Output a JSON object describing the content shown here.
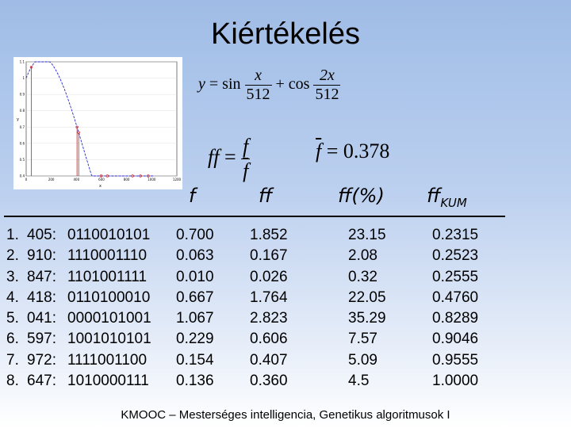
{
  "title": "Kiértékelés",
  "formula_y": {
    "lhs": "y",
    "eq": "=",
    "sin": "sin",
    "n1": "x",
    "d1": "512",
    "plus": "+",
    "cos": "cos",
    "n2": "2x",
    "d2": "512"
  },
  "formula_ff": {
    "lhs": "ff",
    "eq": "=",
    "num": "f",
    "den": "f"
  },
  "formula_mean": {
    "lhs": "f",
    "rhs": "= 0.378"
  },
  "plot": {
    "x_ticks": [
      "0",
      "200",
      "400",
      "600",
      "800",
      "1000",
      "1200"
    ],
    "y_ticks": [
      "1.1",
      "1",
      "0.9",
      "0.8",
      "0.7",
      "0.6",
      "0.5",
      "0.4"
    ],
    "ylabel": "y",
    "xlabel": "x",
    "curve_color": "#2a2ad0",
    "marker_color": "#cc2222"
  },
  "headers": {
    "f": "f",
    "ff": "ff",
    "ffpct": "ff(%)",
    "ffkum_base": "ff",
    "ffkum_sub": "KUM"
  },
  "rows": [
    {
      "idx": "1.",
      "val": "405:",
      "bits": "0110010101",
      "f": "0.700",
      "ff": "1.852",
      "ffpct": "23.15",
      "ffkum": "0.2315"
    },
    {
      "idx": "2.",
      "val": "910:",
      "bits": "1110001110",
      "f": "0.063",
      "ff": "0.167",
      "ffpct": "2.08",
      "ffkum": "0.2523"
    },
    {
      "idx": "3.",
      "val": "847:",
      "bits": "1101001111",
      "f": "0.010",
      "ff": "0.026",
      "ffpct": "0.32",
      "ffkum": "0.2555"
    },
    {
      "idx": "4.",
      "val": "418:",
      "bits": "0110100010",
      "f": "0.667",
      "ff": "1.764",
      "ffpct": "22.05",
      "ffkum": "0.4760"
    },
    {
      "idx": "5.",
      "val": "041:",
      "bits": "0000101001",
      "f": "1.067",
      "ff": "2.823",
      "ffpct": "35.29",
      "ffkum": "0.8289"
    },
    {
      "idx": "6.",
      "val": "597:",
      "bits": "1001010101",
      "f": "0.229",
      "ff": "0.606",
      "ffpct": "7.57",
      "ffkum": "0.9046"
    },
    {
      "idx": "7.",
      "val": "972:",
      "bits": "1111001100",
      "f": "0.154",
      "ff": "0.407",
      "ffpct": "5.09",
      "ffkum": "0.9555"
    },
    {
      "idx": "8.",
      "val": "647:",
      "bits": "1010000111",
      "f": "0.136",
      "ff": "0.360",
      "ffpct": "4.5",
      "ffkum": "1.0000"
    }
  ],
  "footer": "KMOOC – Mesterséges intelligencia, Genetikus algoritmusok I"
}
